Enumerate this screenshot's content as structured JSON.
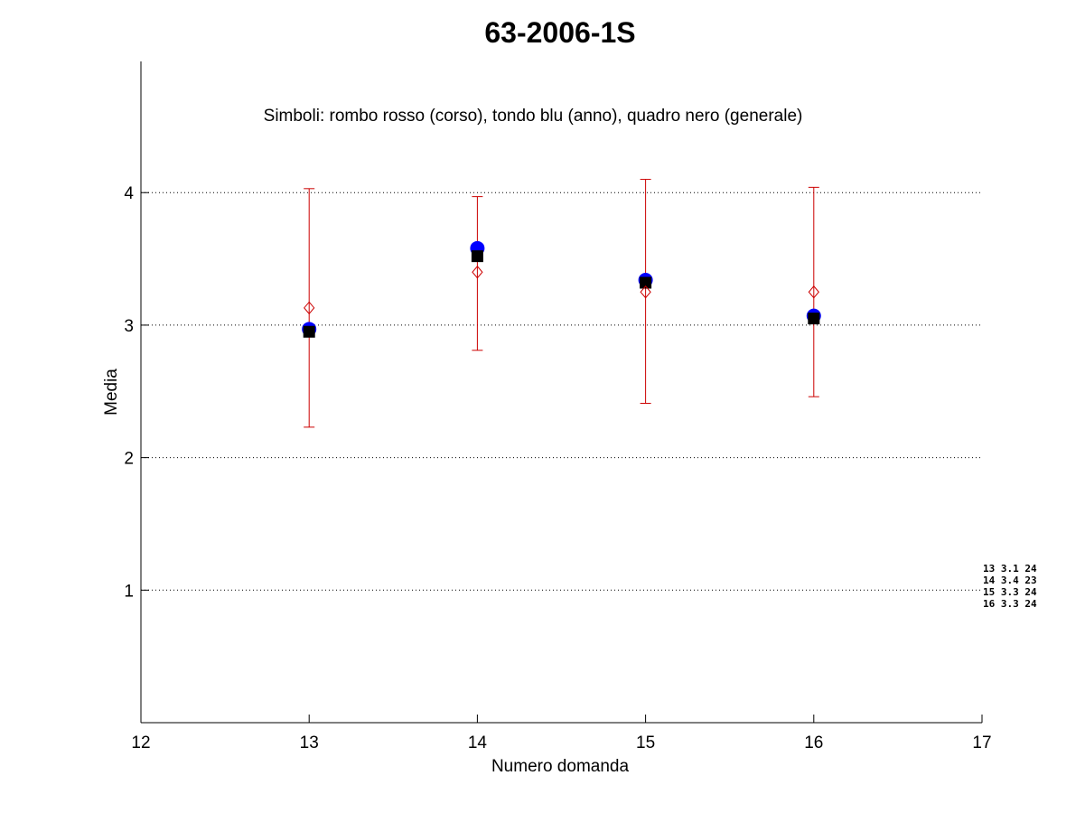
{
  "chart_data": {
    "type": "scatter",
    "title": "63-2006-1S",
    "note": "Simboli: rombo rosso (corso), tondo blu (anno), quadro nero (generale)",
    "xlabel": "Numero domanda",
    "ylabel": "Media",
    "xlim": [
      12,
      17
    ],
    "ylim": [
      0,
      4.99
    ],
    "xticks": [
      "12",
      "13",
      "14",
      "15",
      "16",
      "17"
    ],
    "yticks": [
      "1",
      "2",
      "3",
      "4"
    ],
    "grid": "horizontal dotted at y ticks",
    "x": [
      13,
      14,
      15,
      16
    ],
    "series": [
      {
        "marker": "diamond",
        "color": "#cc0000",
        "values": [
          3.13,
          3.4,
          3.25,
          3.25
        ],
        "err_low": [
          2.23,
          2.81,
          2.41,
          2.46
        ],
        "err_high": [
          4.03,
          3.97,
          4.1,
          4.04
        ]
      },
      {
        "marker": "circle",
        "color": "#0000ff",
        "values": [
          2.97,
          3.58,
          3.34,
          3.07
        ]
      },
      {
        "marker": "square",
        "color": "#000000",
        "values": [
          2.95,
          3.52,
          3.32,
          3.05
        ]
      }
    ],
    "side_table": [
      "13 3.1 24",
      "14 3.4 23",
      "15 3.3 24",
      "16 3.3 24"
    ]
  }
}
